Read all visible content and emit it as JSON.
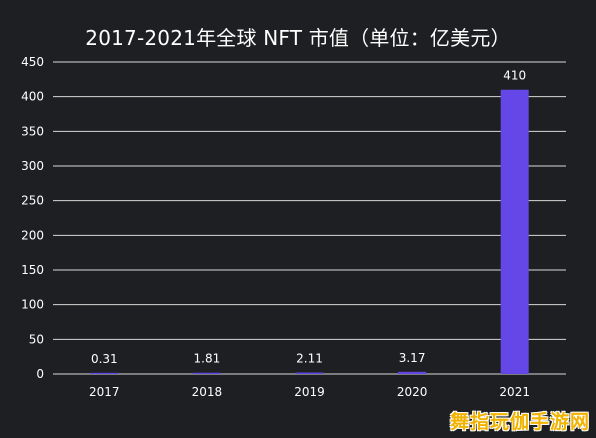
{
  "chart_data": {
    "type": "bar",
    "title": "2017-2021年全球 NFT 市值（单位：亿美元）",
    "xlabel": "",
    "ylabel": "",
    "categories": [
      "2017",
      "2018",
      "2019",
      "2020",
      "2021"
    ],
    "values": [
      0.31,
      1.81,
      2.11,
      3.17,
      410
    ],
    "data_labels": [
      "0.31",
      "1.81",
      "2.11",
      "3.17",
      "410"
    ],
    "ylim": [
      0,
      450
    ],
    "yticks": [
      "0",
      "50",
      "100",
      "150",
      "200",
      "250",
      "300",
      "350",
      "400",
      "450"
    ],
    "grid": true,
    "bar_color": "#6447e6",
    "grid_color": "#d8d8d8",
    "text_color": "#ffffff",
    "background_color": "#1d1f22"
  },
  "watermark": {
    "text": "舞指玩伽手游网"
  }
}
